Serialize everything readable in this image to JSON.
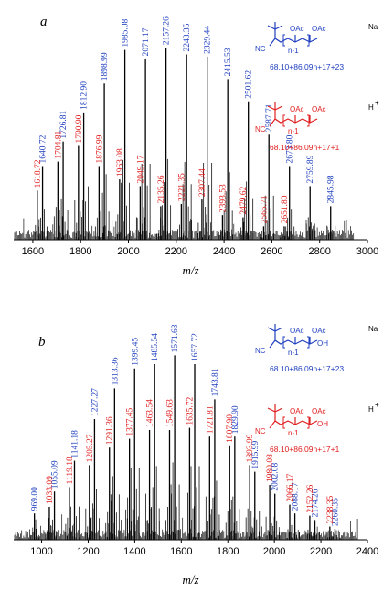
{
  "chart_data": [
    {
      "type": "bar",
      "panel_label": "a",
      "xlabel": "m/z",
      "xlim": [
        1520,
        3000
      ],
      "ylim": [
        0,
        100
      ],
      "x_ticks": [
        1600,
        1800,
        2000,
        2200,
        2400,
        2600,
        2800,
        3000
      ],
      "series": [
        {
          "name": "Na+",
          "color": "#1f3fbf",
          "x": [
            1640.72,
            1726.81,
            1812.9,
            1898.99,
            1985.08,
            2071.17,
            2157.26,
            2243.35,
            2329.44,
            2415.53,
            2501.62,
            2587.71,
            2673.8,
            2759.89,
            2845.98
          ],
          "values": [
            33,
            44,
            57,
            70,
            85,
            81,
            86,
            83,
            82,
            72,
            62,
            47,
            33,
            24,
            15
          ]
        },
        {
          "name": "H+",
          "color": "#e02020",
          "x": [
            1618.72,
            1704.81,
            1790.9,
            1876.99,
            1963.08,
            2049.17,
            2135.26,
            2221.35,
            2307.44,
            2393.53,
            2479.62,
            2565.71,
            2651.8
          ],
          "values": [
            22,
            35,
            42,
            33,
            27,
            24,
            15,
            16,
            18,
            11,
            10,
            6,
            6
          ]
        }
      ],
      "legend": [
        {
          "ion": "Na",
          "color": "#1f3fbf",
          "formula": "68.10+86.09n+17+23",
          "groups": [
            "OAc",
            "OAc"
          ],
          "sub": "n-1",
          "nc": "NC"
        },
        {
          "ion": "H",
          "sup": "+",
          "color": "#e02020",
          "formula": "68.10+86.09n+17+1",
          "groups": [
            "OAc",
            "OAc"
          ],
          "sub": "n-1",
          "nc": "NC"
        }
      ]
    },
    {
      "type": "bar",
      "panel_label": "b",
      "xlabel": "m/z",
      "xlim": [
        880,
        2400
      ],
      "ylim": [
        0,
        100
      ],
      "x_ticks": [
        1000,
        1200,
        1400,
        1600,
        1800,
        2000,
        2200,
        2400
      ],
      "series": [
        {
          "name": "Na+",
          "color": "#1f3fbf",
          "x": [
            969.0,
            1055.09,
            1141.18,
            1227.27,
            1313.36,
            1399.45,
            1485.54,
            1571.63,
            1657.72,
            1743.81,
            1829.9,
            1915.99,
            2002.08,
            2088.17,
            2174.26,
            2260.35
          ],
          "values": [
            12,
            22,
            36,
            55,
            69,
            78,
            80,
            84,
            80,
            64,
            47,
            31,
            21,
            12,
            9,
            5
          ]
        },
        {
          "name": "H+",
          "color": "#e02020",
          "x": [
            1033.09,
            1119.18,
            1205.27,
            1291.36,
            1377.45,
            1463.54,
            1549.63,
            1635.72,
            1721.81,
            1807.9,
            1893.99,
            1980.08,
            2066.17,
            2152.26,
            2238.35
          ],
          "values": [
            15,
            24,
            34,
            42,
            46,
            50,
            50,
            51,
            47,
            43,
            34,
            25,
            16,
            11,
            6
          ]
        }
      ],
      "legend": [
        {
          "ion": "Na",
          "color": "#1f3fbf",
          "formula": "68.10+86.09n+17+23",
          "groups": [
            "OAc",
            "OAc"
          ],
          "sub": "n-1",
          "nc": "NC",
          "oh": "OH"
        },
        {
          "ion": "H",
          "sup": "+",
          "color": "#e02020",
          "formula": "68.10+86.09n+17+1",
          "groups": [
            "OAc",
            "OAc"
          ],
          "sub": "n-1",
          "nc": "NC",
          "oh": "OH"
        }
      ]
    }
  ]
}
